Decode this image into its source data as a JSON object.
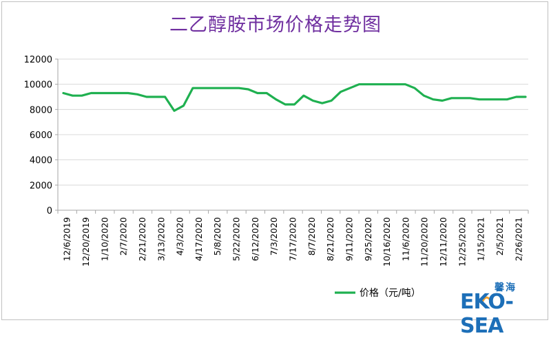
{
  "chart_data": {
    "type": "line",
    "title": "二乙醇胺市场价格走势图",
    "ylim": [
      0,
      12000
    ],
    "yticks": [
      0,
      2000,
      4000,
      6000,
      8000,
      10000,
      12000
    ],
    "grid": true,
    "legend_placement": "bottom",
    "x_tick_labels": [
      "12/6/2019",
      "12/20/2019",
      "1/10/2020",
      "2/7/2020",
      "2/21/2020",
      "3/13/2020",
      "4/3/2020",
      "4/17/2020",
      "5/8/2020",
      "5/22/2020",
      "6/12/2020",
      "7/3/2020",
      "7/17/2020",
      "8/7/2020",
      "8/21/2020",
      "9/11/2020",
      "9/25/2020",
      "10/16/2020",
      "11/6/2020",
      "11/20/2020",
      "12/11/2020",
      "12/25/2020",
      "1/15/2021",
      "2/5/2021",
      "2/26/2021"
    ],
    "series": [
      {
        "name": "价格（元/吨）",
        "color": "#1fb050",
        "values": [
          9300,
          9100,
          9100,
          9300,
          9300,
          9300,
          9300,
          9300,
          9200,
          9000,
          9000,
          9000,
          7900,
          8300,
          9700,
          9700,
          9700,
          9700,
          9700,
          9700,
          9600,
          9300,
          9300,
          8800,
          8400,
          8400,
          9100,
          8700,
          8500,
          8700,
          9400,
          9700,
          10000,
          10000,
          10000,
          10000,
          10000,
          10000,
          9700,
          9100,
          8800,
          8700,
          8900,
          8900,
          8900,
          8800,
          8800,
          8800,
          8800,
          9000,
          9000
        ]
      }
    ]
  },
  "logo": {
    "cn": "馨海",
    "en": "EKO-SEA",
    "color": "#1d6fb8",
    "accent": "#f0a030"
  }
}
